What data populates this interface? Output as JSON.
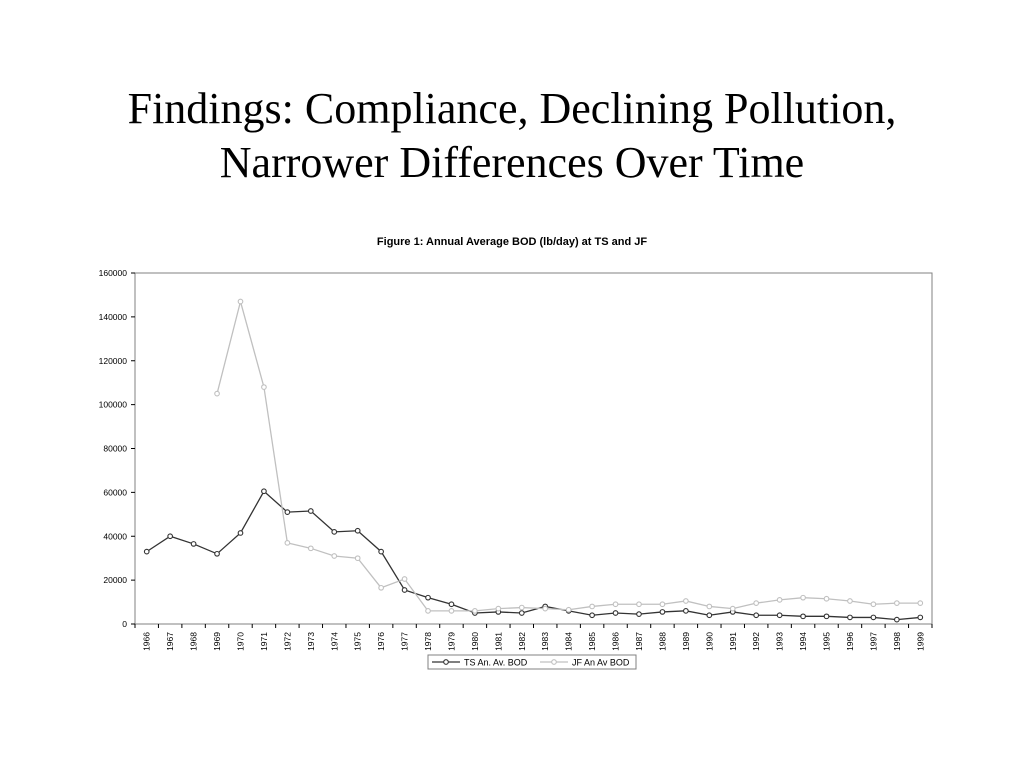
{
  "slide": {
    "title_line1": "Findings: Compliance, Declining Pollution,",
    "title_line2": "Narrower Differences Over Time"
  },
  "chart_data": {
    "type": "line",
    "title": "Figure 1: Annual Average BOD (lb/day) at TS and JF",
    "xlabel": "",
    "ylabel": "",
    "ylim": [
      0,
      160000
    ],
    "yticks": [
      0,
      20000,
      40000,
      60000,
      80000,
      100000,
      120000,
      140000,
      160000
    ],
    "grid": false,
    "legend_position": "bottom",
    "x": [
      "1966",
      "1967",
      "1968",
      "1969",
      "1970",
      "1971",
      "1972",
      "1973",
      "1974",
      "1975",
      "1976",
      "1977",
      "1978",
      "1979",
      "1980",
      "1981",
      "1982",
      "1983",
      "1984",
      "1985",
      "1986",
      "1987",
      "1988",
      "1989",
      "1990",
      "1991",
      "1992",
      "1993",
      "1994",
      "1995",
      "1996",
      "1997",
      "1998",
      "1999"
    ],
    "series": [
      {
        "name": "TS An. Av. BOD",
        "color": "#333333",
        "values": [
          33000,
          40000,
          36500,
          32000,
          41500,
          60500,
          51000,
          51500,
          42000,
          42500,
          33000,
          15500,
          12000,
          9000,
          5000,
          5500,
          5000,
          8000,
          6000,
          4000,
          5000,
          4500,
          5500,
          6000,
          4000,
          5500,
          4000,
          4000,
          3500,
          3500,
          3000,
          3000,
          2000,
          3000
        ]
      },
      {
        "name": "JF An Av BOD",
        "color": "#c0c0c0",
        "values": [
          null,
          null,
          null,
          105000,
          147000,
          108000,
          37000,
          34500,
          31000,
          30000,
          16500,
          20500,
          6000,
          6000,
          6000,
          7000,
          7500,
          7000,
          6500,
          8000,
          9000,
          9000,
          9000,
          10500,
          8000,
          7000,
          9500,
          11000,
          12000,
          11500,
          10500,
          9000,
          9500,
          9500
        ]
      }
    ]
  }
}
